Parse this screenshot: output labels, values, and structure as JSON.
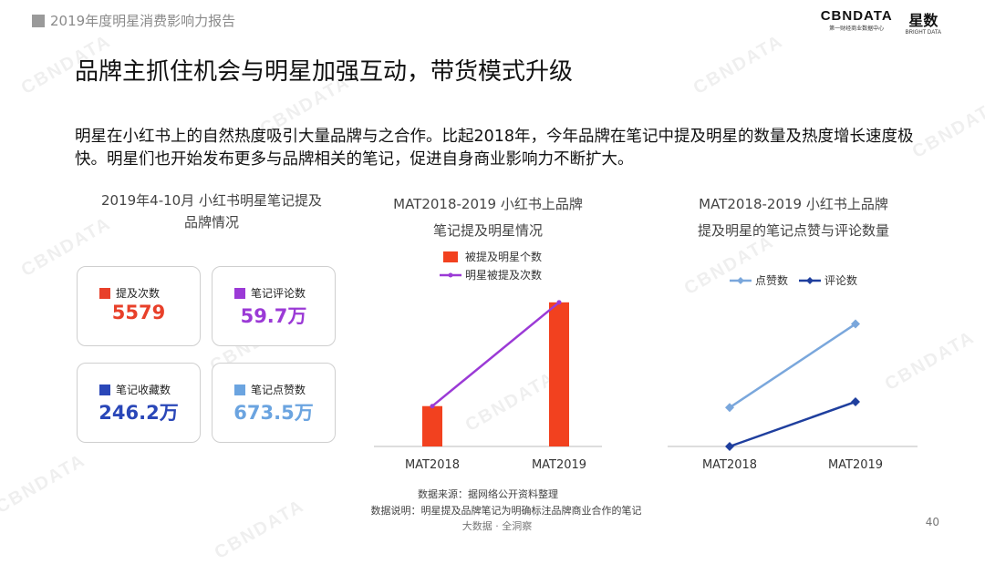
{
  "header": {
    "report_title": "2019年度明星消费影响力报告"
  },
  "logo": {
    "cbn_main": "CBNDATA",
    "cbn_sub": "第一财经商业数据中心",
    "xs_main": "星数",
    "xs_sub": "BRIGHT DATA"
  },
  "watermark": "CBNDATA",
  "page": {
    "title": "品牌主抓住机会与明星加强互动，带货模式升级",
    "body": "明星在小红书上的自然热度吸引大量品牌与之合作。比起2018年，今年品牌在笔记中提及明星的数量及热度增长速度极快。明星们也开始发布更多与品牌相关的笔记，促进自身商业影响力不断扩大。"
  },
  "section_left": {
    "title_line1": "2019年4-10月 小红书明星笔记提及",
    "title_line2": "品牌情况",
    "cards": [
      {
        "label": "提及次数",
        "value": "5579",
        "color": "#e8402a"
      },
      {
        "label": "笔记评论数",
        "value": "59.7万",
        "color": "#9b3ad6"
      },
      {
        "label": "笔记收藏数",
        "value": "246.2万",
        "color": "#2a47b8"
      },
      {
        "label": "笔记点赞数",
        "value": "673.5万",
        "color": "#6ba4e0"
      }
    ]
  },
  "chart_data": [
    {
      "type": "bar",
      "title": "MAT2018-2019 小红书上品牌",
      "subtitle": "笔记提及明星情况",
      "categories": [
        "MAT2018",
        "MAT2019"
      ],
      "series": [
        {
          "name": "被提及明星个数",
          "kind": "bar",
          "color": "#f2411f",
          "values": [
            28,
            100
          ]
        },
        {
          "name": "明星被提及次数",
          "kind": "line",
          "color": "#9b3ad6",
          "values": [
            28,
            100
          ]
        }
      ],
      "ylim": [
        0,
        110
      ],
      "legend": "top",
      "grid": false
    },
    {
      "type": "line",
      "title": "MAT2018-2019 小红书上品牌",
      "subtitle": "提及明星的笔记点赞与评论数量",
      "categories": [
        "MAT2018",
        "MAT2019"
      ],
      "series": [
        {
          "name": "点赞数",
          "color": "#7aa7dc",
          "values": [
            27,
            85
          ]
        },
        {
          "name": "评论数",
          "color": "#1f3f9e",
          "values": [
            0,
            31
          ]
        }
      ],
      "ylim": [
        0,
        110
      ],
      "legend": "top",
      "grid": false
    }
  ],
  "footer": {
    "source": "数据来源：据网络公开资料整理",
    "note": "数据说明：明星提及品牌笔记为明确标注品牌商业合作的笔记",
    "tag": "大数据 · 全洞察",
    "page_number": "40"
  }
}
